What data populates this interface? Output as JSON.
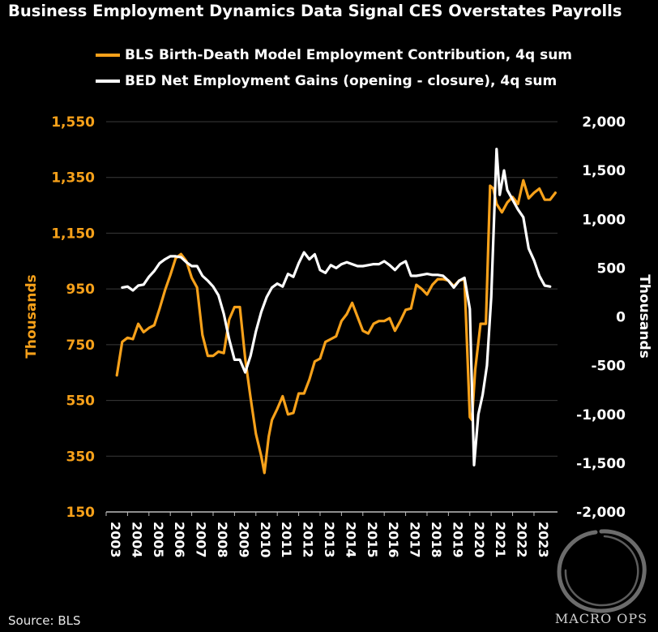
{
  "title": "Business Employment Dynamics Data Signal CES Overstates Payrolls",
  "source": "Source: BLS",
  "watermark": "MACRO OPS",
  "legend": [
    {
      "label": "BLS Birth-Death Model Employment Contribution, 4q sum",
      "color": "#f7a11a"
    },
    {
      "label": "BED Net Employment Gains (opening - closure), 4q sum",
      "color": "#ffffff"
    }
  ],
  "chart_data": {
    "type": "line",
    "title": "Business Employment Dynamics Data Signal CES Overstates Payrolls",
    "xlabel": "",
    "ylabel_left": "Thousands",
    "ylabel_right": "Thousands",
    "left_axis": {
      "min": 150,
      "max": 1550,
      "ticks": [
        "1,550",
        "1,350",
        "1,150",
        "950",
        "750",
        "550",
        "350",
        "150"
      ],
      "tick_values": [
        1550,
        1350,
        1150,
        950,
        750,
        550,
        350,
        150
      ],
      "color": "#f7a11a"
    },
    "right_axis": {
      "min": -2000,
      "max": 2000,
      "ticks": [
        "2,000",
        "1,500",
        "1,000",
        "500",
        "0",
        "-500",
        "-1,000",
        "-1,500",
        "-2,000"
      ],
      "tick_values": [
        2000,
        1500,
        1000,
        500,
        0,
        -500,
        -1000,
        -1500,
        -2000
      ],
      "color": "#ffffff"
    },
    "x_ticks": [
      "2003",
      "2004",
      "2005",
      "2006",
      "2007",
      "2008",
      "2009",
      "2010",
      "2011",
      "2012",
      "2013",
      "2014",
      "2015",
      "2016",
      "2017",
      "2018",
      "2019",
      "2020",
      "2021",
      "2022",
      "2023"
    ],
    "x_range": [
      2003.0,
      2024.1
    ],
    "grid": true,
    "legend_position": "top",
    "series": [
      {
        "name": "BLS Birth-Death Model Employment Contribution, 4q sum",
        "axis": "left",
        "color": "#f7a11a",
        "points": [
          [
            2003.5,
            640
          ],
          [
            2003.75,
            760
          ],
          [
            2004.0,
            775
          ],
          [
            2004.25,
            770
          ],
          [
            2004.5,
            825
          ],
          [
            2004.75,
            795
          ],
          [
            2005.0,
            810
          ],
          [
            2005.25,
            820
          ],
          [
            2005.5,
            880
          ],
          [
            2005.75,
            945
          ],
          [
            2006.0,
            1000
          ],
          [
            2006.25,
            1060
          ],
          [
            2006.5,
            1075
          ],
          [
            2006.75,
            1050
          ],
          [
            2007.0,
            990
          ],
          [
            2007.25,
            955
          ],
          [
            2007.5,
            785
          ],
          [
            2007.75,
            710
          ],
          [
            2008.0,
            710
          ],
          [
            2008.25,
            725
          ],
          [
            2008.5,
            720
          ],
          [
            2008.75,
            840
          ],
          [
            2009.0,
            885
          ],
          [
            2009.25,
            885
          ],
          [
            2009.5,
            700
          ],
          [
            2009.75,
            560
          ],
          [
            2010.0,
            430
          ],
          [
            2010.25,
            350
          ],
          [
            2010.4,
            290
          ],
          [
            2010.6,
            420
          ],
          [
            2010.75,
            480
          ],
          [
            2011.0,
            520
          ],
          [
            2011.25,
            565
          ],
          [
            2011.5,
            500
          ],
          [
            2011.75,
            505
          ],
          [
            2012.0,
            575
          ],
          [
            2012.25,
            575
          ],
          [
            2012.5,
            625
          ],
          [
            2012.75,
            690
          ],
          [
            2013.0,
            700
          ],
          [
            2013.25,
            760
          ],
          [
            2013.5,
            770
          ],
          [
            2013.75,
            780
          ],
          [
            2014.0,
            835
          ],
          [
            2014.25,
            860
          ],
          [
            2014.5,
            900
          ],
          [
            2014.75,
            850
          ],
          [
            2015.0,
            800
          ],
          [
            2015.25,
            790
          ],
          [
            2015.5,
            825
          ],
          [
            2015.75,
            835
          ],
          [
            2016.0,
            835
          ],
          [
            2016.25,
            845
          ],
          [
            2016.5,
            800
          ],
          [
            2016.75,
            835
          ],
          [
            2017.0,
            875
          ],
          [
            2017.25,
            880
          ],
          [
            2017.5,
            965
          ],
          [
            2017.75,
            950
          ],
          [
            2018.0,
            930
          ],
          [
            2018.25,
            965
          ],
          [
            2018.5,
            985
          ],
          [
            2018.75,
            985
          ],
          [
            2019.0,
            980
          ],
          [
            2019.25,
            960
          ],
          [
            2019.5,
            980
          ],
          [
            2019.75,
            985
          ],
          [
            2020.0,
            490
          ],
          [
            2020.1,
            480
          ],
          [
            2020.25,
            660
          ],
          [
            2020.5,
            825
          ],
          [
            2020.75,
            825
          ],
          [
            2020.95,
            1320
          ],
          [
            2021.1,
            1310
          ],
          [
            2021.25,
            1255
          ],
          [
            2021.5,
            1225
          ],
          [
            2021.75,
            1260
          ],
          [
            2022.0,
            1280
          ],
          [
            2022.25,
            1255
          ],
          [
            2022.5,
            1340
          ],
          [
            2022.75,
            1275
          ],
          [
            2023.0,
            1295
          ],
          [
            2023.25,
            1310
          ],
          [
            2023.5,
            1270
          ],
          [
            2023.75,
            1270
          ],
          [
            2024.0,
            1295
          ]
        ]
      },
      {
        "name": "BED Net Employment Gains (opening - closure), 4q sum",
        "axis": "right",
        "color": "#ffffff",
        "points": [
          [
            2003.75,
            300
          ],
          [
            2004.0,
            310
          ],
          [
            2004.25,
            270
          ],
          [
            2004.5,
            320
          ],
          [
            2004.75,
            330
          ],
          [
            2005.0,
            410
          ],
          [
            2005.25,
            470
          ],
          [
            2005.5,
            550
          ],
          [
            2005.75,
            590
          ],
          [
            2006.0,
            620
          ],
          [
            2006.25,
            620
          ],
          [
            2006.5,
            610
          ],
          [
            2006.75,
            560
          ],
          [
            2007.0,
            520
          ],
          [
            2007.25,
            520
          ],
          [
            2007.5,
            420
          ],
          [
            2007.75,
            370
          ],
          [
            2008.0,
            310
          ],
          [
            2008.25,
            220
          ],
          [
            2008.5,
            30
          ],
          [
            2008.75,
            -230
          ],
          [
            2009.0,
            -440
          ],
          [
            2009.25,
            -440
          ],
          [
            2009.5,
            -570
          ],
          [
            2009.75,
            -400
          ],
          [
            2010.0,
            -150
          ],
          [
            2010.25,
            50
          ],
          [
            2010.5,
            200
          ],
          [
            2010.75,
            300
          ],
          [
            2011.0,
            340
          ],
          [
            2011.25,
            310
          ],
          [
            2011.5,
            440
          ],
          [
            2011.75,
            410
          ],
          [
            2012.0,
            550
          ],
          [
            2012.25,
            660
          ],
          [
            2012.5,
            590
          ],
          [
            2012.75,
            640
          ],
          [
            2013.0,
            480
          ],
          [
            2013.25,
            450
          ],
          [
            2013.5,
            530
          ],
          [
            2013.75,
            500
          ],
          [
            2014.0,
            540
          ],
          [
            2014.25,
            560
          ],
          [
            2014.5,
            540
          ],
          [
            2014.75,
            520
          ],
          [
            2015.0,
            520
          ],
          [
            2015.25,
            530
          ],
          [
            2015.5,
            540
          ],
          [
            2015.75,
            540
          ],
          [
            2016.0,
            570
          ],
          [
            2016.25,
            530
          ],
          [
            2016.5,
            480
          ],
          [
            2016.75,
            540
          ],
          [
            2017.0,
            570
          ],
          [
            2017.25,
            420
          ],
          [
            2017.5,
            420
          ],
          [
            2017.75,
            430
          ],
          [
            2018.0,
            440
          ],
          [
            2018.25,
            430
          ],
          [
            2018.5,
            430
          ],
          [
            2018.75,
            420
          ],
          [
            2019.0,
            370
          ],
          [
            2019.25,
            300
          ],
          [
            2019.5,
            370
          ],
          [
            2019.75,
            400
          ],
          [
            2020.0,
            80
          ],
          [
            2020.2,
            -1520
          ],
          [
            2020.4,
            -1000
          ],
          [
            2020.6,
            -800
          ],
          [
            2020.8,
            -500
          ],
          [
            2021.0,
            200
          ],
          [
            2021.25,
            1720
          ],
          [
            2021.4,
            1250
          ],
          [
            2021.6,
            1500
          ],
          [
            2021.75,
            1300
          ],
          [
            2022.0,
            1200
          ],
          [
            2022.25,
            1100
          ],
          [
            2022.5,
            1020
          ],
          [
            2022.75,
            700
          ],
          [
            2023.0,
            580
          ],
          [
            2023.25,
            420
          ],
          [
            2023.5,
            320
          ],
          [
            2023.75,
            310
          ]
        ]
      }
    ]
  }
}
